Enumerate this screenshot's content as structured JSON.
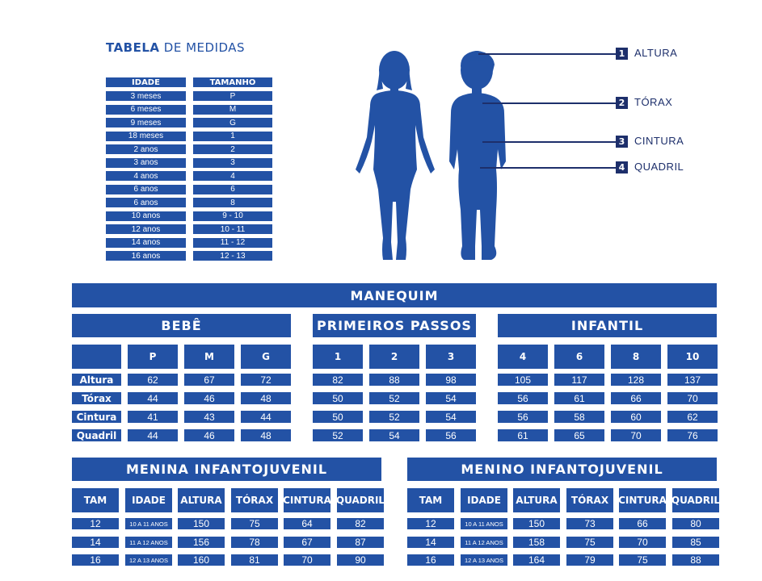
{
  "size_table": {
    "title_bold": "TABELA",
    "title_rest": " DE MEDIDAS",
    "col_age": "IDADE",
    "col_size": "TAMANHO",
    "rows": [
      {
        "age": "3 meses",
        "size": "P"
      },
      {
        "age": "6 meses",
        "size": "M"
      },
      {
        "age": "9 meses",
        "size": "G"
      },
      {
        "age": "18 meses",
        "size": "1"
      },
      {
        "age": "2 anos",
        "size": "2"
      },
      {
        "age": "3 anos",
        "size": "3"
      },
      {
        "age": "4 anos",
        "size": "4"
      },
      {
        "age": "6 anos",
        "size": "6"
      },
      {
        "age": "6 anos",
        "size": "8"
      },
      {
        "age": "10 anos",
        "size": "9 - 10"
      },
      {
        "age": "12 anos",
        "size": "10 - 11"
      },
      {
        "age": "14 anos",
        "size": "11 - 12"
      },
      {
        "age": "16 anos",
        "size": "12 - 13"
      }
    ]
  },
  "legend": [
    {
      "num": "1",
      "label": "ALTURA"
    },
    {
      "num": "2",
      "label": "TÓRAX"
    },
    {
      "num": "3",
      "label": "CINTURA"
    },
    {
      "num": "4",
      "label": "QUADRIL"
    }
  ],
  "manequim": {
    "title": "MANEQUIM",
    "groups": [
      "BEBÊ",
      "PRIMEIROS PASSOS",
      "INFANTIL"
    ],
    "sizes": [
      "P",
      "M",
      "G",
      "1",
      "2",
      "3",
      "4",
      "6",
      "8",
      "10"
    ],
    "rows": [
      {
        "label": "Altura",
        "values": [
          "62",
          "67",
          "72",
          "82",
          "88",
          "98",
          "105",
          "117",
          "128",
          "137"
        ]
      },
      {
        "label": "Tórax",
        "values": [
          "44",
          "46",
          "48",
          "50",
          "52",
          "54",
          "56",
          "61",
          "66",
          "70"
        ]
      },
      {
        "label": "Cintura",
        "values": [
          "41",
          "43",
          "44",
          "50",
          "52",
          "54",
          "56",
          "58",
          "60",
          "62"
        ]
      },
      {
        "label": "Quadril",
        "values": [
          "44",
          "46",
          "48",
          "52",
          "54",
          "56",
          "61",
          "65",
          "70",
          "76"
        ]
      }
    ]
  },
  "menina": {
    "title": "MENINA INFANTOJUVENIL",
    "headers": [
      "TAM",
      "IDADE",
      "ALTURA",
      "TÓRAX",
      "CINTURA",
      "QUADRIL"
    ],
    "rows": [
      [
        "12",
        "10 A 11 ANOS",
        "150",
        "75",
        "64",
        "82"
      ],
      [
        "14",
        "11 A 12 ANOS",
        "156",
        "78",
        "67",
        "87"
      ],
      [
        "16",
        "12 A 13 ANOS",
        "160",
        "81",
        "70",
        "90"
      ]
    ]
  },
  "menino": {
    "title": "MENINO INFANTOJUVENIL",
    "headers": [
      "TAM",
      "IDADE",
      "ALTURA",
      "TÓRAX",
      "CINTURA",
      "QUADRIL"
    ],
    "rows": [
      [
        "12",
        "10 A 11 ANOS",
        "150",
        "73",
        "66",
        "80"
      ],
      [
        "14",
        "11 A 12 ANOS",
        "158",
        "75",
        "70",
        "85"
      ],
      [
        "16",
        "12 A 13 ANOS",
        "164",
        "79",
        "75",
        "88"
      ]
    ]
  },
  "colors": {
    "brand": "#2352a5",
    "legend": "#1d2f6b",
    "background": "#ffffff"
  },
  "icons": [
    "girl-silhouette-icon",
    "boy-silhouette-icon"
  ]
}
